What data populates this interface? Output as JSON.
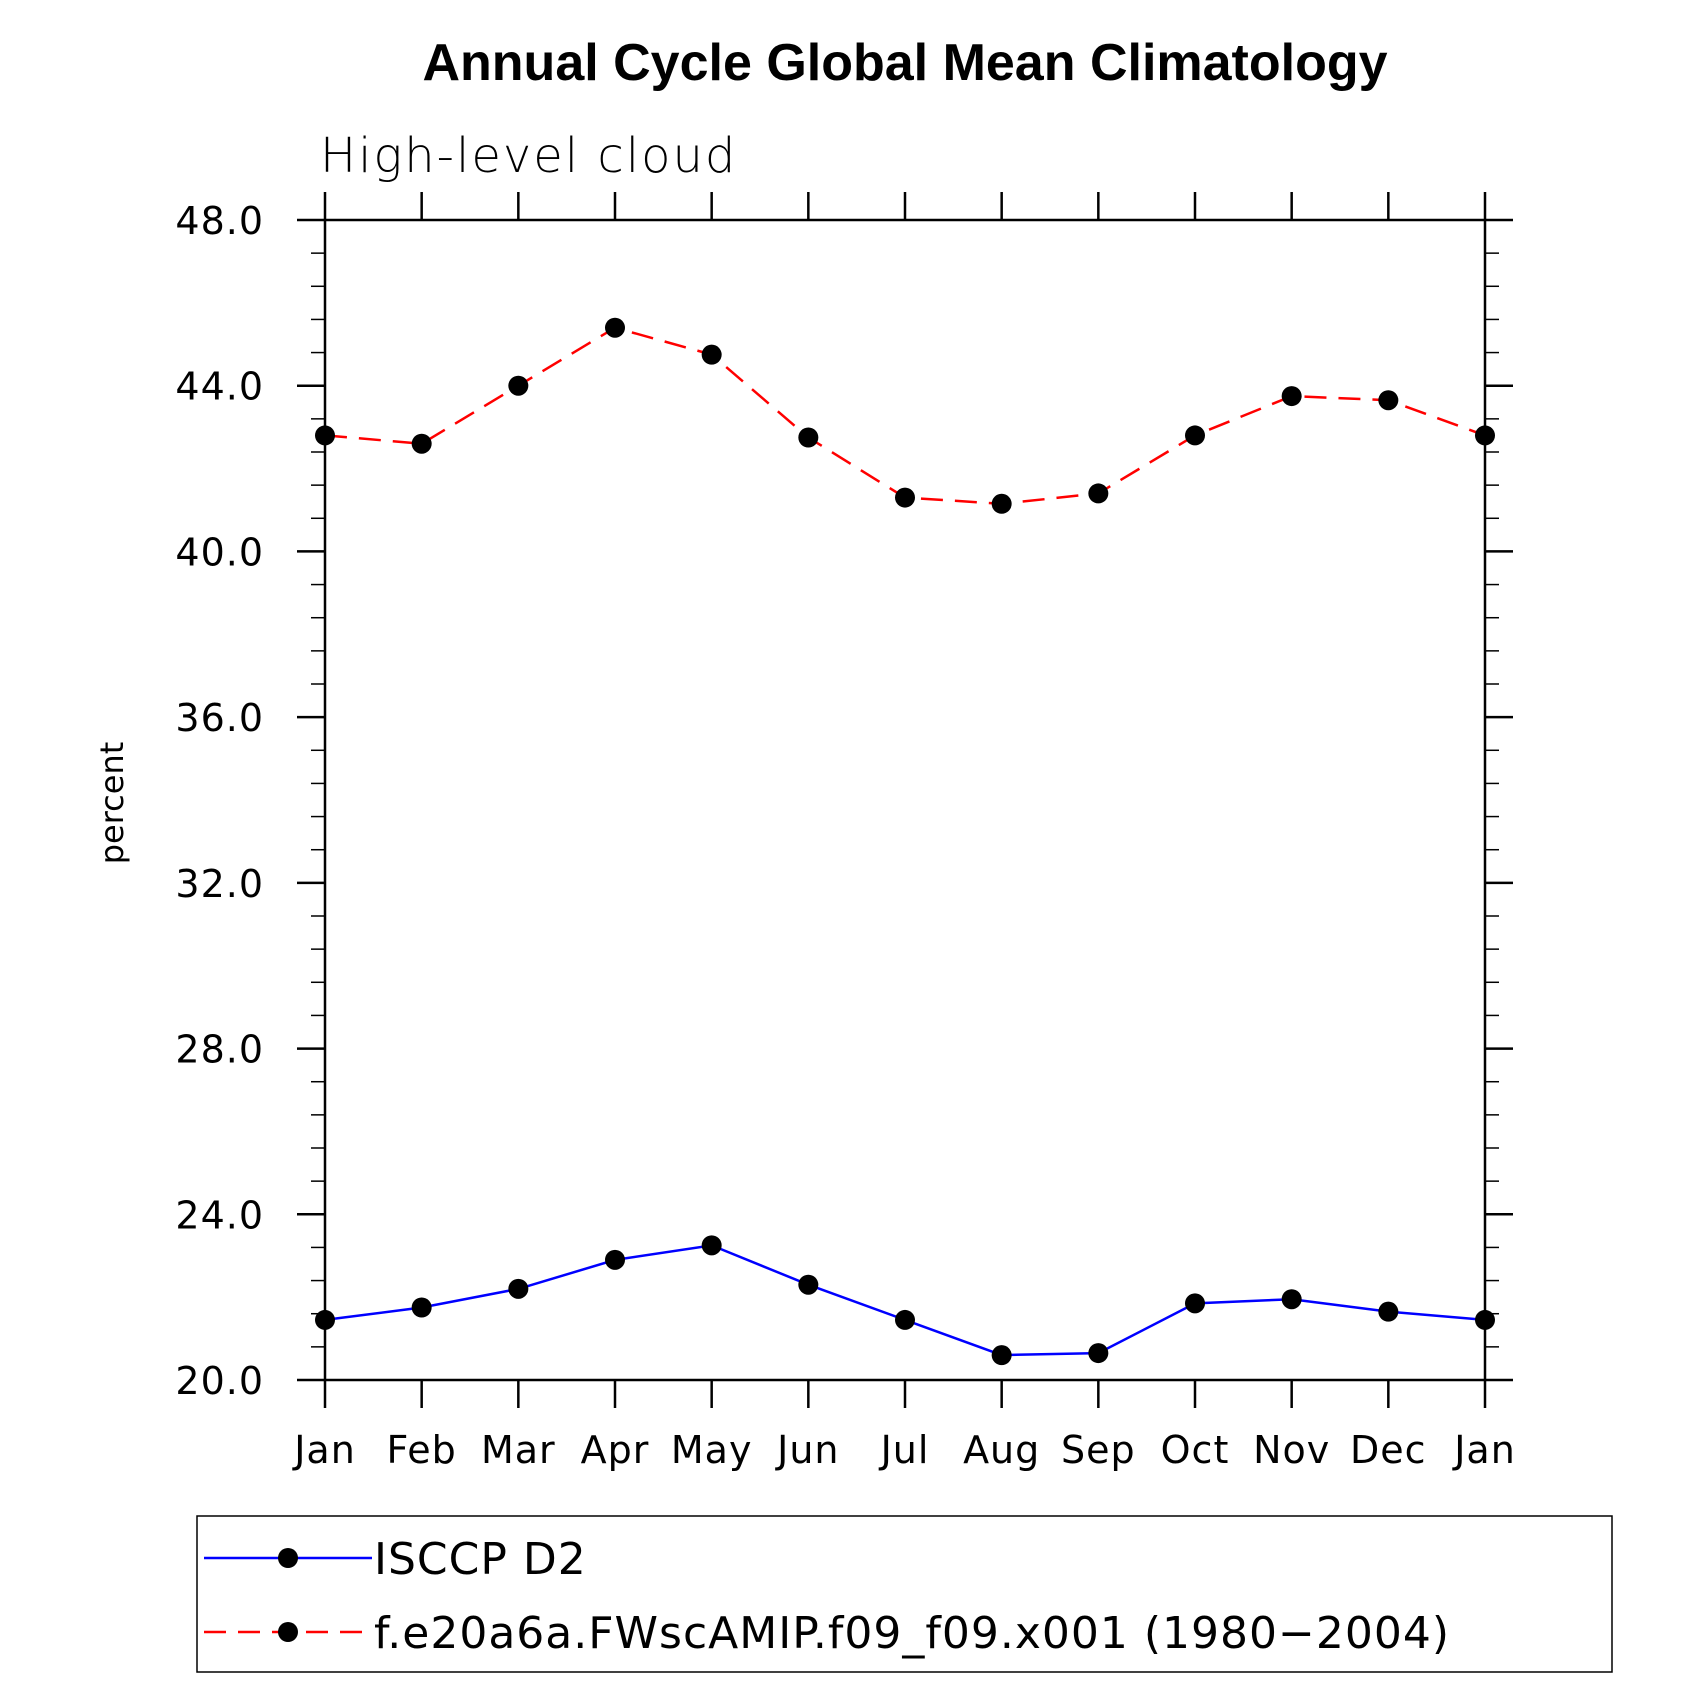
{
  "chart_data": {
    "type": "line",
    "title": "Annual Cycle Global Mean Climatology",
    "subtitle": "High-level cloud",
    "xlabel": "",
    "ylabel": "percent",
    "categories": [
      "Jan",
      "Feb",
      "Mar",
      "Apr",
      "May",
      "Jun",
      "Jul",
      "Aug",
      "Sep",
      "Oct",
      "Nov",
      "Dec",
      "Jan"
    ],
    "ylim": [
      20.0,
      48.0
    ],
    "yticks": [
      "20.0",
      "24.0",
      "28.0",
      "32.0",
      "36.0",
      "40.0",
      "44.0",
      "48.0"
    ],
    "series": [
      {
        "name": "ISCCP D2",
        "color": "#0000ff",
        "dash": "solid",
        "values": [
          21.45,
          21.75,
          22.2,
          22.9,
          23.25,
          22.3,
          21.45,
          20.6,
          20.65,
          21.85,
          21.95,
          21.65,
          21.45
        ]
      },
      {
        "name": "f.e20a6a.FWscAMIP.f09_f09.x001 (1980−2004)",
        "color": "#ff0000",
        "dash": "dashed",
        "values": [
          42.8,
          42.6,
          44.0,
          45.4,
          44.75,
          42.75,
          41.3,
          41.15,
          41.4,
          42.8,
          43.75,
          43.65,
          42.8
        ]
      }
    ],
    "legend_position": "bottom"
  }
}
